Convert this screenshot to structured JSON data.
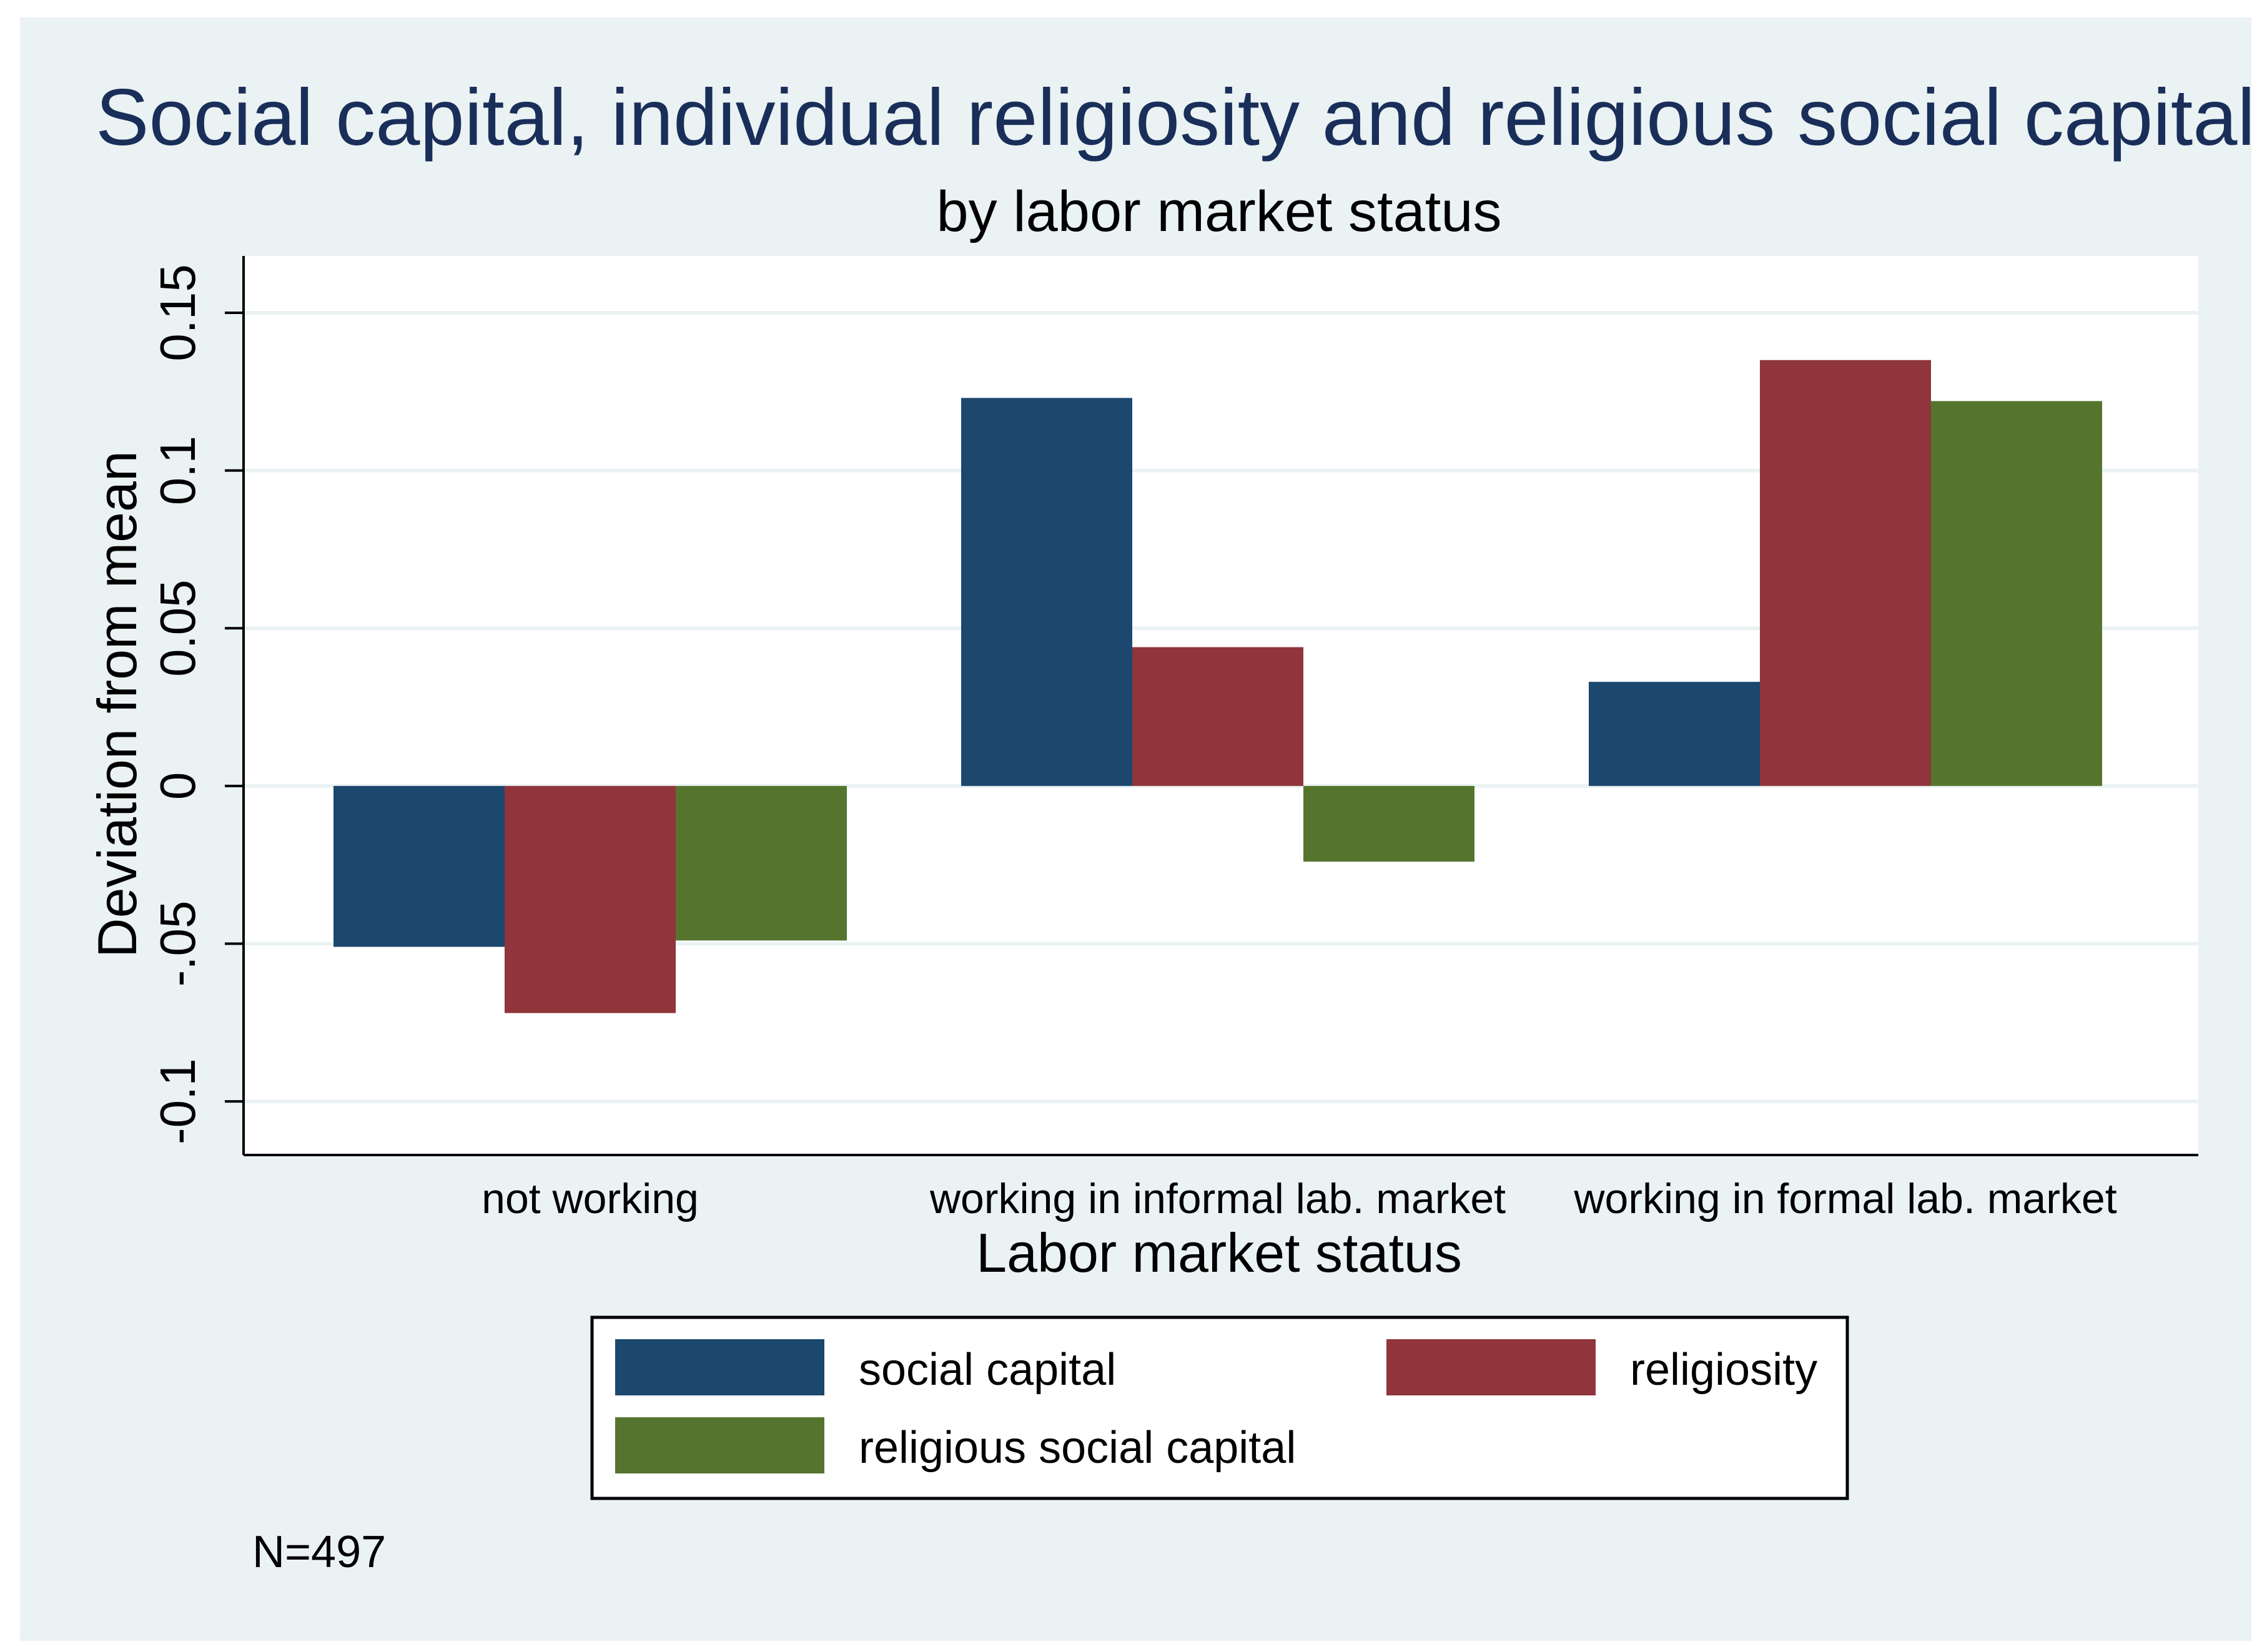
{
  "chart_data": {
    "type": "bar",
    "title": "Social capital, individual religiosity and religious social capital",
    "subtitle": "by labor market status",
    "xlabel": "Labor market status",
    "ylabel": "Deviation from mean",
    "categories": [
      "not working",
      "working in informal lab. market",
      "working in formal lab. market"
    ],
    "series": [
      {
        "name": "social capital",
        "color": "#1c476e",
        "values": [
          -0.051,
          0.123,
          0.033
        ]
      },
      {
        "name": "religiosity",
        "color": "#90353b",
        "values": [
          -0.072,
          0.044,
          0.135
        ]
      },
      {
        "name": "religious social capital",
        "color": "#55752f",
        "values": [
          -0.049,
          -0.024,
          0.122
        ]
      }
    ],
    "yticks": [
      -0.1,
      -0.05,
      0,
      0.05,
      0.1,
      0.15
    ],
    "ytick_labels": [
      "-0.1",
      "-.05",
      "0",
      "0.05",
      "0.1",
      "0.15"
    ],
    "ylim": [
      -0.117,
      0.168
    ],
    "grid": true,
    "legend_position": "bottom",
    "note": "N=497",
    "background_color": "#eaf2f3",
    "plot_color": "#ffffff",
    "title_color": "#1a2e5a"
  }
}
